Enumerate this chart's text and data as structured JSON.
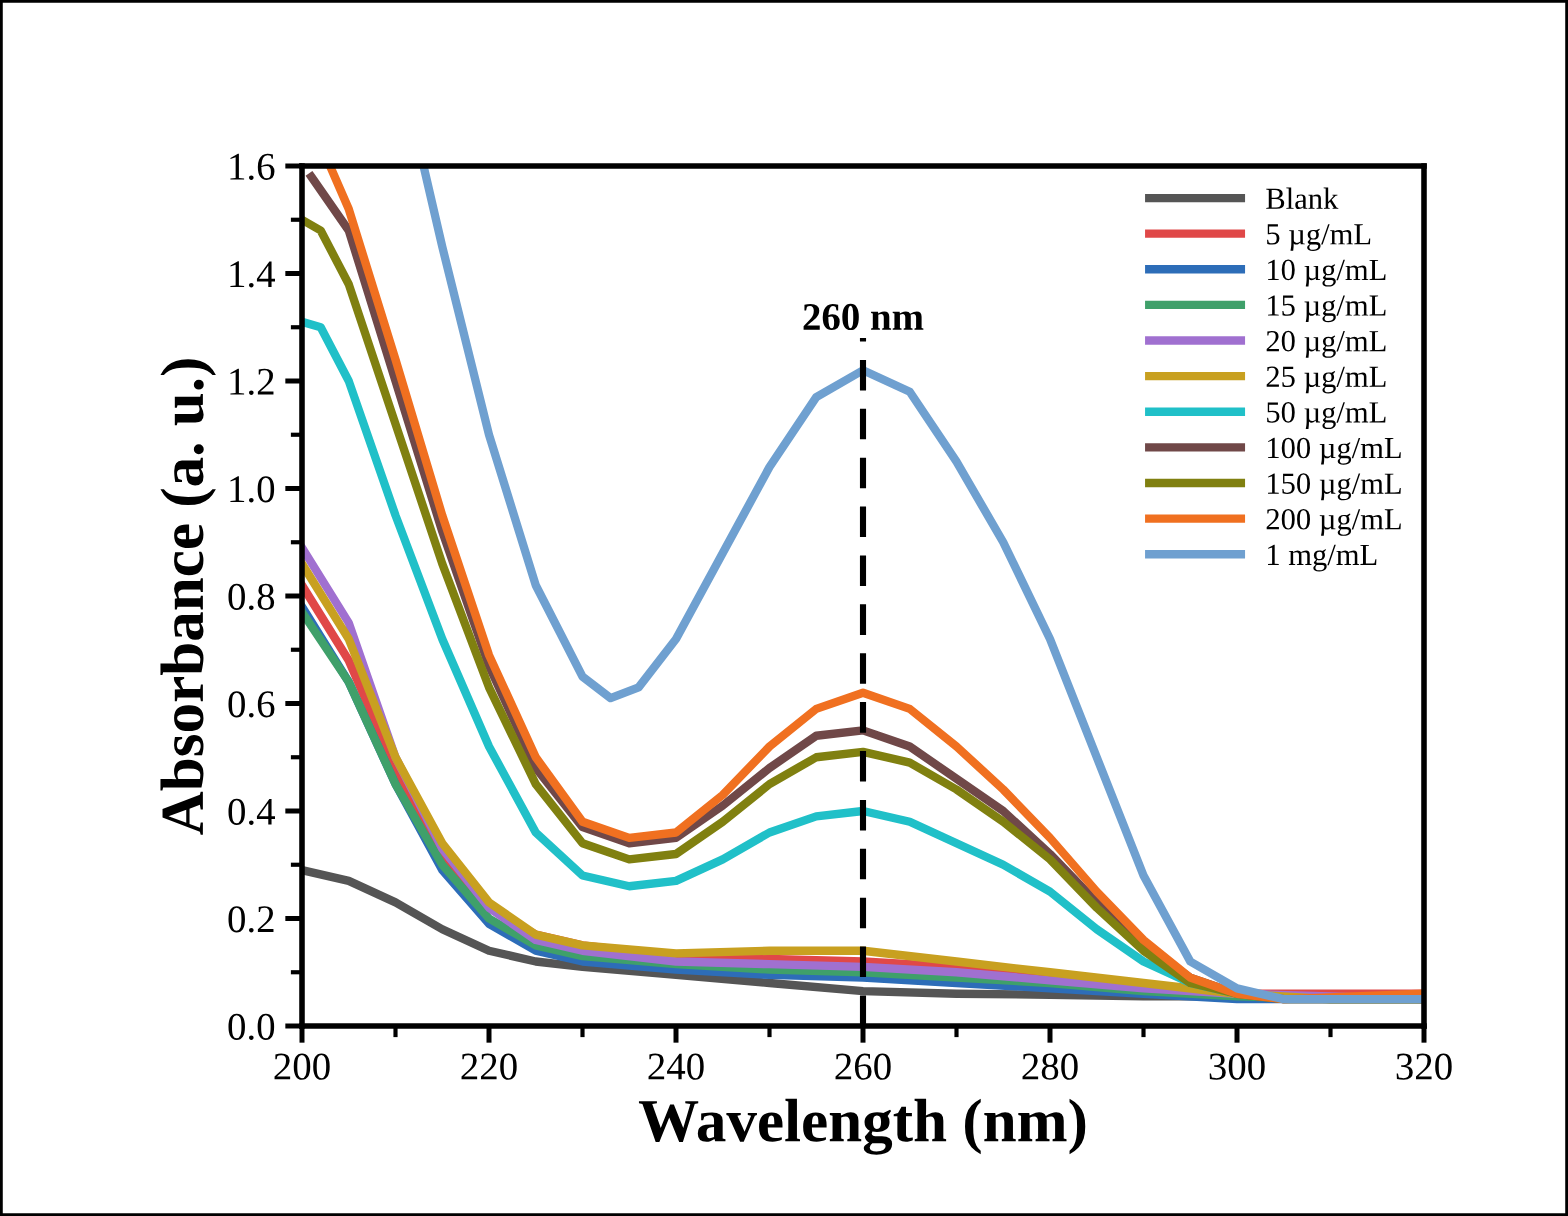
{
  "chart_data": {
    "type": "line",
    "xlabel": "Wavelength (nm)",
    "ylabel": "Absorbance (a. u.)",
    "xlim": [
      200,
      320
    ],
    "xticks": [
      200,
      220,
      240,
      260,
      280,
      300,
      320
    ],
    "ylim": [
      0,
      1.6
    ],
    "yticks": [
      {
        "value": 0,
        "label": "0.0"
      },
      0.2,
      0.4,
      0.6,
      0.8,
      {
        "value": 1,
        "label": "1.0"
      },
      1.2,
      1.4,
      1.6
    ],
    "grid": false,
    "legend": "top right",
    "marker": "none",
    "line_style": "solid",
    "ref_lines": [
      {
        "axis": "x",
        "value": 260,
        "line_style": "dashed",
        "color": "#000000"
      }
    ],
    "annotations": [
      {
        "text": "260 nm",
        "x": 260,
        "y": 1.28
      }
    ],
    "series": [
      {
        "name": "Blank",
        "color": "#555555",
        "x": [
          200,
          205,
          210,
          215,
          220,
          225,
          230,
          240,
          250,
          260,
          270,
          280,
          290,
          300,
          320
        ],
        "values": [
          0.29,
          0.27,
          0.23,
          0.18,
          0.14,
          0.12,
          0.11,
          0.095,
          0.08,
          0.065,
          0.06,
          0.058,
          0.055,
          0.055,
          0.055
        ]
      },
      {
        "name": "5 µg/mL",
        "color": "#e04848",
        "x": [
          200,
          205,
          210,
          215,
          220,
          225,
          230,
          240,
          250,
          260,
          270,
          280,
          290,
          300,
          310,
          320
        ],
        "values": [
          0.82,
          0.68,
          0.48,
          0.32,
          0.22,
          0.17,
          0.15,
          0.13,
          0.125,
          0.12,
          0.11,
          0.09,
          0.07,
          0.06,
          0.06,
          0.06
        ]
      },
      {
        "name": "10 µg/mL",
        "color": "#2d6db8",
        "x": [
          200,
          205,
          210,
          215,
          220,
          225,
          230,
          240,
          250,
          260,
          270,
          280,
          290,
          300,
          310,
          320
        ],
        "values": [
          0.78,
          0.64,
          0.45,
          0.29,
          0.19,
          0.14,
          0.12,
          0.105,
          0.095,
          0.09,
          0.08,
          0.07,
          0.06,
          0.05,
          0.05,
          0.05
        ]
      },
      {
        "name": "15 µg/mL",
        "color": "#3fa06a",
        "x": [
          200,
          205,
          210,
          215,
          220,
          225,
          230,
          240,
          250,
          260,
          270,
          280,
          290,
          300,
          310,
          320
        ],
        "values": [
          0.77,
          0.64,
          0.45,
          0.3,
          0.2,
          0.15,
          0.13,
          0.115,
          0.105,
          0.1,
          0.09,
          0.08,
          0.065,
          0.055,
          0.05,
          0.05
        ]
      },
      {
        "name": "20 µg/mL",
        "color": "#a070d0",
        "x": [
          200,
          205,
          210,
          215,
          220,
          225,
          230,
          240,
          250,
          260,
          270,
          280,
          290,
          300,
          310,
          320
        ],
        "values": [
          0.89,
          0.75,
          0.5,
          0.33,
          0.22,
          0.16,
          0.14,
          0.12,
          0.115,
          0.11,
          0.1,
          0.085,
          0.07,
          0.06,
          0.055,
          0.05
        ]
      },
      {
        "name": "25 µg/mL",
        "color": "#c8a020",
        "x": [
          200,
          205,
          210,
          215,
          220,
          225,
          230,
          240,
          250,
          260,
          270,
          280,
          290,
          300,
          310,
          320
        ],
        "values": [
          0.86,
          0.72,
          0.5,
          0.34,
          0.23,
          0.17,
          0.15,
          0.135,
          0.14,
          0.14,
          0.12,
          0.1,
          0.08,
          0.06,
          0.05,
          0.05
        ]
      },
      {
        "name": "50 µg/mL",
        "color": "#20c0c8",
        "x": [
          200,
          202,
          205,
          210,
          215,
          220,
          225,
          230,
          235,
          240,
          245,
          250,
          255,
          260,
          265,
          270,
          275,
          280,
          285,
          290,
          295,
          300
        ],
        "values": [
          1.31,
          1.3,
          1.2,
          0.95,
          0.72,
          0.52,
          0.36,
          0.28,
          0.26,
          0.27,
          0.31,
          0.36,
          0.39,
          0.4,
          0.38,
          0.34,
          0.3,
          0.25,
          0.18,
          0.12,
          0.08,
          0.06
        ]
      },
      {
        "name": "100 µg/mL",
        "color": "#704848",
        "x": [
          201,
          205,
          210,
          215,
          220,
          225,
          230,
          235,
          240,
          245,
          250,
          255,
          260,
          265,
          270,
          275,
          280,
          285,
          290,
          295,
          300,
          305,
          320
        ],
        "values": [
          1.58,
          1.48,
          1.2,
          0.92,
          0.67,
          0.48,
          0.37,
          0.34,
          0.35,
          0.41,
          0.48,
          0.54,
          0.55,
          0.52,
          0.46,
          0.4,
          0.32,
          0.23,
          0.15,
          0.09,
          0.06,
          0.05,
          0.05
        ]
      },
      {
        "name": "150 µg/mL",
        "color": "#808010",
        "x": [
          200,
          202,
          205,
          210,
          215,
          220,
          225,
          230,
          235,
          240,
          245,
          250,
          255,
          260,
          265,
          270,
          275,
          280,
          285,
          290,
          295,
          300,
          305,
          320
        ],
        "values": [
          1.5,
          1.48,
          1.38,
          1.12,
          0.86,
          0.63,
          0.45,
          0.34,
          0.31,
          0.32,
          0.38,
          0.45,
          0.5,
          0.51,
          0.49,
          0.44,
          0.38,
          0.31,
          0.22,
          0.14,
          0.08,
          0.06,
          0.05,
          0.05
        ]
      },
      {
        "name": "200 µg/mL",
        "color": "#f07020",
        "x": [
          203,
          205,
          210,
          215,
          220,
          225,
          230,
          235,
          240,
          245,
          250,
          255,
          260,
          265,
          270,
          275,
          280,
          285,
          290,
          295,
          300,
          305,
          320
        ],
        "values": [
          1.6,
          1.52,
          1.24,
          0.95,
          0.69,
          0.5,
          0.38,
          0.35,
          0.36,
          0.43,
          0.52,
          0.59,
          0.62,
          0.59,
          0.52,
          0.44,
          0.35,
          0.25,
          0.16,
          0.09,
          0.06,
          0.05,
          0.06
        ]
      },
      {
        "name": "1 mg/mL",
        "color": "#6fa0d0",
        "x": [
          213,
          215,
          220,
          225,
          230,
          233,
          236,
          240,
          245,
          250,
          255,
          260,
          265,
          270,
          275,
          280,
          285,
          290,
          295,
          300,
          305,
          320
        ],
        "values": [
          1.6,
          1.45,
          1.1,
          0.82,
          0.65,
          0.61,
          0.63,
          0.72,
          0.88,
          1.04,
          1.17,
          1.22,
          1.18,
          1.05,
          0.9,
          0.72,
          0.5,
          0.28,
          0.12,
          0.07,
          0.05,
          0.05
        ]
      }
    ]
  }
}
